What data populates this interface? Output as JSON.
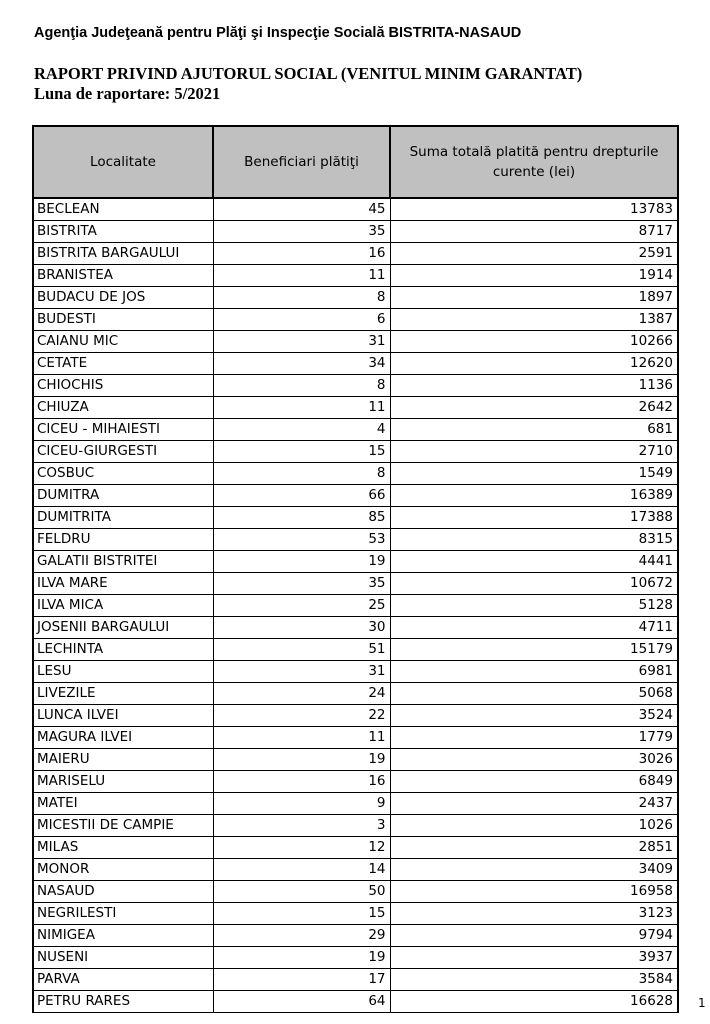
{
  "header": {
    "agency": "Agenţia Judeţeană pentru Plăţi şi Inspecţie Socială BISTRITA-NASAUD",
    "report_title": "RAPORT  PRIVIND AJUTORUL SOCIAL (VENITUL MINIM GARANTAT)",
    "report_period": "Luna de raportare: 5/2021"
  },
  "table": {
    "columns": [
      "Localitate",
      "Beneficiari plătiţi",
      "Suma totală platită pentru drepturile curente (lei)"
    ],
    "rows": [
      {
        "localitate": "BECLEAN",
        "beneficiari": "45",
        "suma": "13783"
      },
      {
        "localitate": "BISTRITA",
        "beneficiari": "35",
        "suma": "8717"
      },
      {
        "localitate": "BISTRITA BARGAULUI",
        "beneficiari": "16",
        "suma": "2591"
      },
      {
        "localitate": "BRANISTEA",
        "beneficiari": "11",
        "suma": "1914"
      },
      {
        "localitate": "BUDACU DE JOS",
        "beneficiari": "8",
        "suma": "1897"
      },
      {
        "localitate": "BUDESTI",
        "beneficiari": "6",
        "suma": "1387"
      },
      {
        "localitate": "CAIANU MIC",
        "beneficiari": "31",
        "suma": "10266"
      },
      {
        "localitate": "CETATE",
        "beneficiari": "34",
        "suma": "12620"
      },
      {
        "localitate": "CHIOCHIS",
        "beneficiari": "8",
        "suma": "1136"
      },
      {
        "localitate": "CHIUZA",
        "beneficiari": "11",
        "suma": "2642"
      },
      {
        "localitate": "CICEU - MIHAIESTI",
        "beneficiari": "4",
        "suma": "681"
      },
      {
        "localitate": "CICEU-GIURGESTI",
        "beneficiari": "15",
        "suma": "2710"
      },
      {
        "localitate": "COSBUC",
        "beneficiari": "8",
        "suma": "1549"
      },
      {
        "localitate": "DUMITRA",
        "beneficiari": "66",
        "suma": "16389"
      },
      {
        "localitate": "DUMITRITA",
        "beneficiari": "85",
        "suma": "17388"
      },
      {
        "localitate": "FELDRU",
        "beneficiari": "53",
        "suma": "8315"
      },
      {
        "localitate": "GALATII BISTRITEI",
        "beneficiari": "19",
        "suma": "4441"
      },
      {
        "localitate": "ILVA MARE",
        "beneficiari": "35",
        "suma": "10672"
      },
      {
        "localitate": "ILVA MICA",
        "beneficiari": "25",
        "suma": "5128"
      },
      {
        "localitate": "JOSENII BARGAULUI",
        "beneficiari": "30",
        "suma": "4711"
      },
      {
        "localitate": "LECHINTA",
        "beneficiari": "51",
        "suma": "15179"
      },
      {
        "localitate": "LESU",
        "beneficiari": "31",
        "suma": "6981"
      },
      {
        "localitate": "LIVEZILE",
        "beneficiari": "24",
        "suma": "5068"
      },
      {
        "localitate": "LUNCA ILVEI",
        "beneficiari": "22",
        "suma": "3524"
      },
      {
        "localitate": "MAGURA ILVEI",
        "beneficiari": "11",
        "suma": "1779"
      },
      {
        "localitate": "MAIERU",
        "beneficiari": "19",
        "suma": "3026"
      },
      {
        "localitate": "MARISELU",
        "beneficiari": "16",
        "suma": "6849"
      },
      {
        "localitate": "MATEI",
        "beneficiari": "9",
        "suma": "2437"
      },
      {
        "localitate": "MICESTII DE CAMPIE",
        "beneficiari": "3",
        "suma": "1026"
      },
      {
        "localitate": "MILAS",
        "beneficiari": "12",
        "suma": "2851"
      },
      {
        "localitate": "MONOR",
        "beneficiari": "14",
        "suma": "3409"
      },
      {
        "localitate": "NASAUD",
        "beneficiari": "50",
        "suma": "16958"
      },
      {
        "localitate": "NEGRILESTI",
        "beneficiari": "15",
        "suma": "3123"
      },
      {
        "localitate": "NIMIGEA",
        "beneficiari": "29",
        "suma": "9794"
      },
      {
        "localitate": "NUSENI",
        "beneficiari": "19",
        "suma": "3937"
      },
      {
        "localitate": "PARVA",
        "beneficiari": "17",
        "suma": "3584"
      },
      {
        "localitate": "PETRU RARES",
        "beneficiari": "64",
        "suma": "16628"
      }
    ]
  },
  "footer": {
    "page_number": "1"
  }
}
